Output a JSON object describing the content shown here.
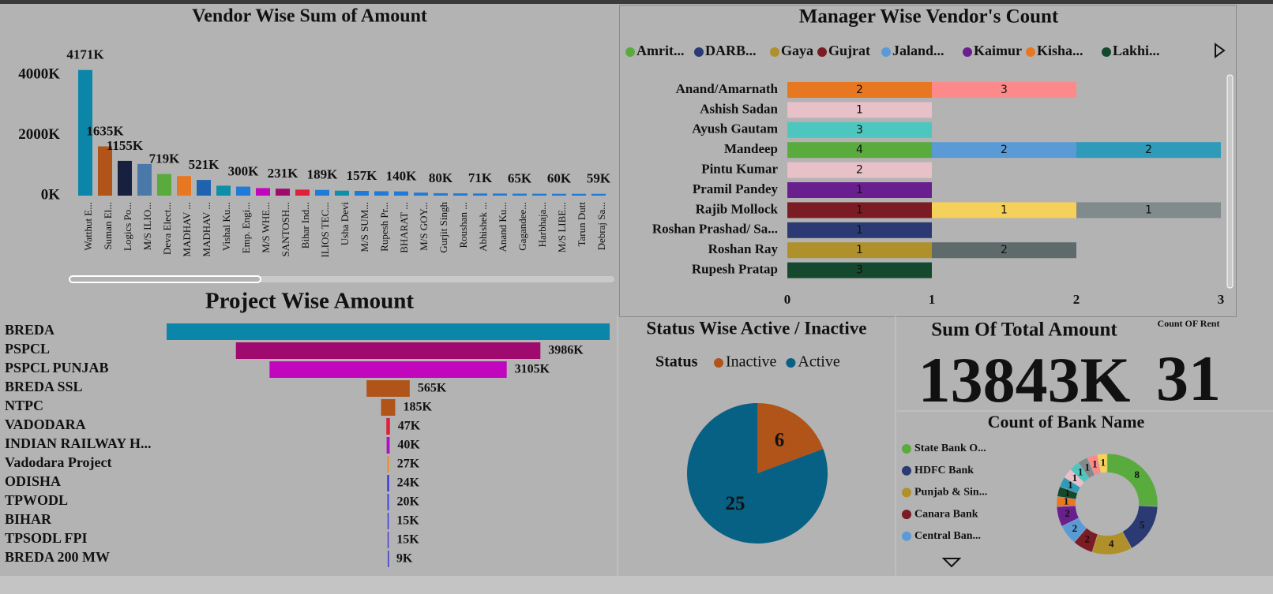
{
  "chart_data": [
    {
      "type": "bar",
      "title": "Vendor Wise Sum of Amount",
      "categories": [
        "Watthut E...",
        "Suman El...",
        "Logics Po...",
        "M/S ILIO...",
        "Deva Elect...",
        "MADHAV ...",
        "MADHAV ...",
        "Vishal Ku...",
        "Emp. Engi...",
        "M/S WHE...",
        "SANTOSH...",
        "Bihar Ind...",
        "ILIOS TEC...",
        "Usha Devi",
        "M/S SUM...",
        "Rupesh Pr...",
        "BHARAT ...",
        "M/S GOY...",
        "Gurjit Singh",
        "Roushan ...",
        "Abhishek ...",
        "Anand Ku...",
        "Gagandee...",
        "Harbhaja...",
        "M/S LIBE...",
        "Tarun Dutt",
        "Debraj Sa..."
      ],
      "values": [
        4171,
        1635,
        1155,
        1050,
        719,
        650,
        521,
        330,
        300,
        250,
        231,
        200,
        189,
        165,
        157,
        145,
        140,
        100,
        80,
        75,
        71,
        68,
        65,
        62,
        60,
        59,
        59
      ],
      "value_labels": [
        "4171K",
        "1635K",
        "1155K",
        null,
        "719K",
        null,
        "521K",
        null,
        "300K",
        null,
        "231K",
        null,
        "189K",
        null,
        "157K",
        null,
        "140K",
        null,
        "80K",
        null,
        "71K",
        null,
        "65K",
        null,
        "60K",
        null,
        "59K"
      ],
      "colors": [
        "#0b86a8",
        "#b0541a",
        "#17203f",
        "#4a78a8",
        "#5aab3e",
        "#e87722",
        "#1f63b0",
        "#0e8fa8",
        "#1f7ad8",
        "#c106bd",
        "#a0096e",
        "#e0203a",
        "#1f7ad8",
        "#0e8fa8",
        "#1f7ad8",
        "#1f7ad8",
        "#1f7ad8",
        "#1f7ad8",
        "#1f7ad8",
        "#1f7ad8",
        "#1f7ad8",
        "#1f7ad8",
        "#1f7ad8",
        "#1f7ad8",
        "#1f7ad8",
        "#1f7ad8",
        "#1f7ad8"
      ],
      "ylim": [
        0,
        4400
      ],
      "yticks": [
        {
          "value": 0,
          "label": "0K"
        },
        {
          "value": 2000,
          "label": "2000K"
        },
        {
          "value": 4000,
          "label": "4000K"
        }
      ]
    },
    {
      "type": "stacked-hbar",
      "title": "Manager Wise Vendor's Count",
      "legend": [
        {
          "name": "Amrit...",
          "color": "#5aab3e"
        },
        {
          "name": "DARB...",
          "color": "#2b3a73"
        },
        {
          "name": "Gaya",
          "color": "#b0902a"
        },
        {
          "name": "Gujrat",
          "color": "#7b1c24"
        },
        {
          "name": "Jaland...",
          "color": "#5b9bd5"
        },
        {
          "name": "Kaimur",
          "color": "#6a1f8f"
        },
        {
          "name": "Kisha...",
          "color": "#e87722"
        },
        {
          "name": "Lakhi...",
          "color": "#15492e"
        }
      ],
      "categories": [
        "Anand/Amarnath",
        "Ashish Sadan",
        "Ayush Gautam",
        "Mandeep",
        "Pintu Kumar",
        "Pramil Pandey",
        "Rajib Mollock",
        "Roshan Prashad/ Sa...",
        "Roshan Ray",
        "Rupesh Pratap"
      ],
      "segments": [
        [
          {
            "width": 1,
            "count": 2,
            "color": "#e87722"
          },
          {
            "width": 1,
            "count": 3,
            "color": "#fd8a8a"
          }
        ],
        [
          {
            "width": 1,
            "count": 1,
            "color": "#e8c0c8"
          }
        ],
        [
          {
            "width": 1,
            "count": 3,
            "color": "#4ec6c0"
          }
        ],
        [
          {
            "width": 1,
            "count": 4,
            "color": "#5aab3e"
          },
          {
            "width": 1,
            "count": 2,
            "color": "#5b9bd5"
          },
          {
            "width": 1,
            "count": 2,
            "color": "#2f9bb8"
          }
        ],
        [
          {
            "width": 1,
            "count": 2,
            "color": "#e8c0c8"
          }
        ],
        [
          {
            "width": 1,
            "count": 1,
            "color": "#6a1f8f"
          }
        ],
        [
          {
            "width": 1,
            "count": 1,
            "color": "#7b1c24"
          },
          {
            "width": 1,
            "count": 1,
            "color": "#f5d05a"
          },
          {
            "width": 1,
            "count": 1,
            "color": "#818a8c"
          }
        ],
        [
          {
            "width": 1,
            "count": 1,
            "color": "#2b3a73"
          }
        ],
        [
          {
            "width": 1,
            "count": 1,
            "color": "#b0902a"
          },
          {
            "width": 1,
            "count": 2,
            "color": "#5f6b6b"
          }
        ],
        [
          {
            "width": 1,
            "count": 3,
            "color": "#15492e"
          }
        ]
      ],
      "xlim": [
        0,
        3
      ],
      "xticks": [
        0,
        1,
        2,
        3
      ]
    },
    {
      "type": "funnel",
      "title": "Project Wise Amount",
      "categories": [
        "BREDA",
        "PSPCL",
        "PSPCL PUNJAB",
        "BREDA SSL",
        "NTPC",
        "VADODARA",
        "INDIAN RAILWAY H...",
        "Vadodara Project",
        "ODISHA",
        "TPWODL",
        "BIHAR",
        "TPSODL FPI",
        "BREDA 200 MW"
      ],
      "values": [
        5800,
        3986,
        3105,
        565,
        185,
        47,
        40,
        27,
        24,
        20,
        15,
        15,
        9
      ],
      "value_labels": [
        null,
        "3986K",
        "3105K",
        "565K",
        "185K",
        "47K",
        "40K",
        "27K",
        "24K",
        "20K",
        "15K",
        "15K",
        "9K"
      ],
      "colors": [
        "#0b86a8",
        "#a0096e",
        "#c106bd",
        "#b0541a",
        "#b0541a",
        "#e0203a",
        "#b010c0",
        "#e8913c",
        "#3a2fd8",
        "#4040e0",
        "#3a3ae0",
        "#4a3ad8",
        "#3a3ad0"
      ]
    },
    {
      "type": "pie",
      "title": "Status Wise Active / Inactive",
      "legend_title": "Status",
      "categories": [
        "Inactive",
        "Active"
      ],
      "values": [
        6,
        25
      ],
      "colors": [
        "#b0541a",
        "#066184"
      ]
    },
    {
      "type": "card",
      "title": "Sum Of Total Amount",
      "value": "13843K"
    },
    {
      "type": "card",
      "title": "Count OF Rent",
      "value": 31
    },
    {
      "type": "donut",
      "title": "Count of Bank Name",
      "categories": [
        "State Bank O...",
        "HDFC Bank",
        "Punjab & Sin...",
        "Canara Bank",
        "Central Ban...",
        null,
        null,
        null,
        null,
        null,
        null,
        null,
        null,
        null
      ],
      "values": [
        8,
        5,
        4,
        2,
        2,
        2,
        1,
        1,
        1,
        1,
        1,
        1,
        1,
        1
      ],
      "colors": [
        "#5aab3e",
        "#2b3a73",
        "#b0902a",
        "#7b1c24",
        "#5b9bd5",
        "#6a1f8f",
        "#e87722",
        "#15492e",
        "#2f9bb8",
        "#e8c0c8",
        "#4ec6c0",
        "#818a8c",
        "#fd8a8a",
        "#f5d05a"
      ]
    }
  ]
}
